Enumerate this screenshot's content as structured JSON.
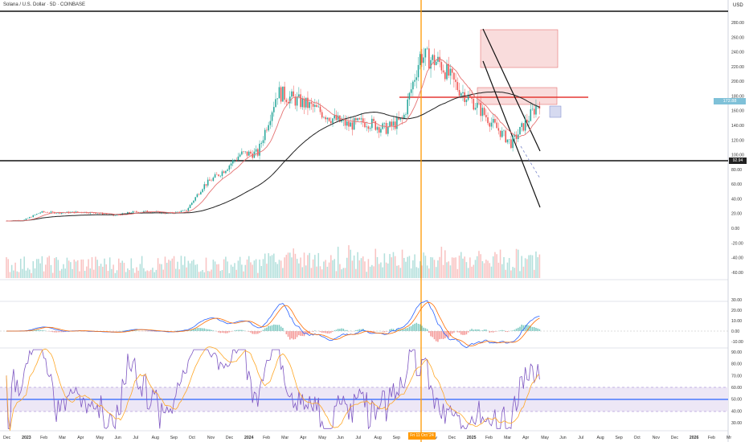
{
  "header": {
    "title": "Solana / U.S. Dollar · 5D · COINBASE",
    "currency": "USD"
  },
  "price_axis": {
    "ticks": [
      "280.00",
      "260.00",
      "240.00",
      "220.00",
      "200.00",
      "180.00",
      "160.00",
      "140.00",
      "120.00",
      "100.00",
      "80.00",
      "60.00",
      "40.00",
      "20.00",
      "0.00",
      "-20.00",
      "-40.00",
      "-60.00"
    ],
    "last_price_label": "172.88",
    "level_label": "92.94"
  },
  "time_axis": {
    "labels": [
      "Dec",
      "2023",
      "Feb",
      "Mar",
      "Apr",
      "May",
      "Jun",
      "Jul",
      "Aug",
      "Sep",
      "Oct",
      "Nov",
      "Dec",
      "2024",
      "Feb",
      "Mar",
      "Apr",
      "May",
      "Jun",
      "Jul",
      "Aug",
      "Sep",
      "Oct",
      "Nov",
      "Dec",
      "2025",
      "Feb",
      "Mar",
      "Apr",
      "May",
      "Jun",
      "Jul",
      "Aug",
      "Sep",
      "Oct",
      "Nov",
      "Dec",
      "2026",
      "Feb",
      "Mr"
    ],
    "highlight_label": "Fri 11 Oct '24"
  },
  "macd_axis": {
    "ticks": [
      "30.00",
      "20.00",
      "10.00",
      "0.00",
      "-10.00"
    ]
  },
  "rsi_axis": {
    "ticks": [
      "90.00",
      "80.00",
      "70.00",
      "60.00",
      "50.00",
      "40.00",
      "30.00"
    ]
  },
  "colors": {
    "up": "#26a69a",
    "down": "#ef5350",
    "ma_long": "#222222",
    "ma_short": "#e57373",
    "vline": "#ff9800",
    "hline": "#e53935",
    "rsi": "#7e57c2",
    "rsi_band": "#ede7f6",
    "rsi_mid": "#2962ff"
  },
  "chart_data": {
    "type": "candlestick",
    "series": [
      {
        "name": "SOLUSD",
        "values": [
          [
            2022.92,
            10
          ],
          [
            2023.0,
            11
          ],
          [
            2023.08,
            22
          ],
          [
            2023.17,
            21
          ],
          [
            2023.25,
            22
          ],
          [
            2023.33,
            21
          ],
          [
            2023.42,
            17
          ],
          [
            2023.5,
            22
          ],
          [
            2023.58,
            23
          ],
          [
            2023.67,
            20
          ],
          [
            2023.75,
            24
          ],
          [
            2023.83,
            58
          ],
          [
            2023.92,
            78
          ],
          [
            2024.0,
            101
          ],
          [
            2024.08,
            102
          ],
          [
            2024.17,
            185
          ],
          [
            2024.25,
            175
          ],
          [
            2024.33,
            165
          ],
          [
            2024.42,
            150
          ],
          [
            2024.5,
            140
          ],
          [
            2024.58,
            145
          ],
          [
            2024.67,
            135
          ],
          [
            2024.75,
            148
          ],
          [
            2024.83,
            235
          ],
          [
            2024.92,
            225
          ],
          [
            2025.0,
            192
          ],
          [
            2025.08,
            170
          ],
          [
            2025.17,
            140
          ],
          [
            2025.25,
            115
          ],
          [
            2025.33,
            150
          ],
          [
            2025.38,
            172.88
          ]
        ]
      }
    ]
  }
}
